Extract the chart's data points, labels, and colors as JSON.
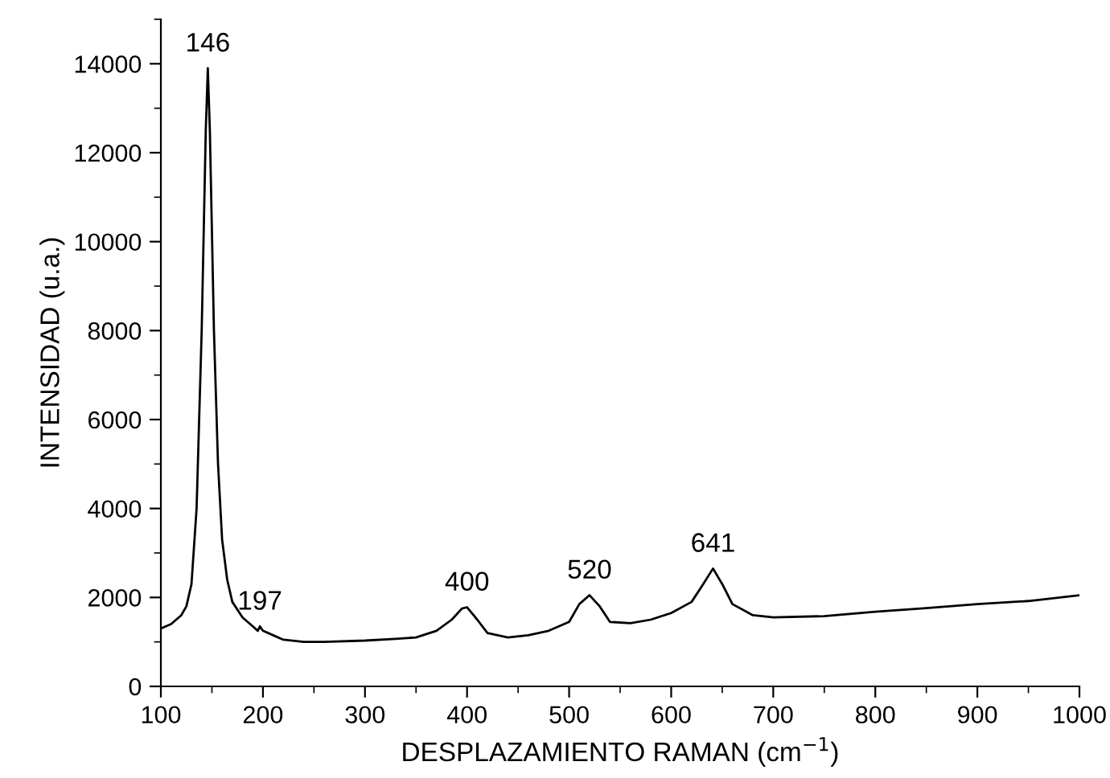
{
  "chart_data": {
    "type": "line",
    "xlabel": "DESPLAZAMIENTO RAMAN (cm$^{−1}$)",
    "ylabel": "INTENSIDAD (u.a.)",
    "x": [
      100,
      110,
      120,
      125,
      130,
      135,
      140,
      144,
      146,
      148,
      152,
      156,
      160,
      165,
      170,
      180,
      190,
      195,
      197,
      200,
      210,
      220,
      240,
      260,
      300,
      330,
      350,
      370,
      385,
      395,
      400,
      410,
      420,
      440,
      460,
      480,
      500,
      510,
      520,
      530,
      540,
      560,
      580,
      600,
      620,
      630,
      641,
      650,
      660,
      680,
      700,
      750,
      800,
      850,
      900,
      950,
      1000
    ],
    "series": [
      {
        "color": "#000000",
        "values": [
          1300,
          1400,
          1600,
          1800,
          2300,
          4000,
          8000,
          12500,
          13900,
          12500,
          8000,
          5000,
          3300,
          2400,
          1900,
          1550,
          1350,
          1250,
          1350,
          1250,
          1150,
          1050,
          1000,
          1000,
          1030,
          1070,
          1100,
          1250,
          1500,
          1750,
          1780,
          1500,
          1200,
          1100,
          1150,
          1250,
          1450,
          1850,
          2050,
          1800,
          1450,
          1420,
          1500,
          1650,
          1900,
          2250,
          2650,
          2300,
          1850,
          1600,
          1550,
          1580,
          1680,
          1760,
          1850,
          1920,
          2050
        ]
      }
    ],
    "xlim": [
      100,
      1000
    ],
    "xticks": [
      100,
      200,
      300,
      400,
      500,
      600,
      700,
      800,
      900,
      1000
    ],
    "ylim": [
      0,
      15000
    ],
    "yticks": [
      0,
      2000,
      4000,
      6000,
      8000,
      10000,
      12000,
      14000
    ],
    "annotations": [
      {
        "text": "146",
        "x": 146,
        "y": 13900
      },
      {
        "text": "197",
        "x": 197,
        "y": 1350
      },
      {
        "text": "400",
        "x": 400,
        "y": 1780
      },
      {
        "text": "520",
        "x": 520,
        "y": 2050
      },
      {
        "text": "641",
        "x": 641,
        "y": 2650
      }
    ],
    "grid": false,
    "legend": false,
    "marker": "none",
    "line_style": "solid"
  }
}
